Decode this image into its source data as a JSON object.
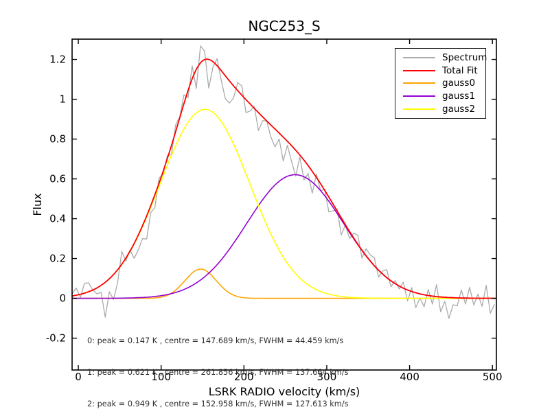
{
  "figure": {
    "title": "NGC253_S",
    "background": "#ffffff"
  },
  "legend": {
    "position": "upper right",
    "entries": [
      {
        "label": "Spectrum",
        "color": "#aaaaaa"
      },
      {
        "label": "Total Fit",
        "color": "#ff0000"
      },
      {
        "label": "gauss0",
        "color": "#ffa500"
      },
      {
        "label": "gauss1",
        "color": "#9400d3"
      },
      {
        "label": "gauss2",
        "color": "#ffff00"
      }
    ]
  },
  "annotation": {
    "lines": [
      "0: peak = 0.147 K , centre = 147.689 km/s, FWHM = 44.459 km/s",
      "1: peak = 0.621 K , centre = 261.856 km/s, FWHM = 137.664 km/s",
      "2: peak = 0.949 K , centre = 152.958 km/s, FWHM = 127.613 km/s"
    ]
  },
  "chart_data": {
    "type": "line",
    "title": "NGC253_S",
    "xlabel": "LSRK RADIO velocity (km/s)",
    "ylabel": "Flux",
    "xlim": [
      -7.5,
      504.8
    ],
    "ylim": [
      -0.36,
      1.302
    ],
    "grid": false,
    "legend_position": "upper right",
    "x_ticks": {
      "values": [
        0,
        100,
        200,
        300,
        400,
        500
      ],
      "labels": [
        "0",
        "100",
        "200",
        "300",
        "400",
        "500"
      ]
    },
    "y_ticks": {
      "values": [
        -0.2,
        0,
        0.2,
        0.4,
        0.6,
        0.8,
        1.0,
        1.2
      ],
      "labels": [
        "-0.2",
        "0",
        "0.2",
        "0.4",
        "0.6",
        "0.8",
        "1",
        "1.2"
      ]
    },
    "fit_components": [
      {
        "name": "gauss0",
        "color": "#ffa500",
        "peak_K": 0.147,
        "centre_kms": 147.689,
        "fwhm_kms": 44.459
      },
      {
        "name": "gauss1",
        "color": "#9400d3",
        "peak_K": 0.621,
        "centre_kms": 261.856,
        "fwhm_kms": 137.664
      },
      {
        "name": "gauss2",
        "color": "#ffff00",
        "peak_K": 0.949,
        "centre_kms": 152.958,
        "fwhm_kms": 127.613
      }
    ],
    "total_fit": {
      "name": "Total Fit",
      "color": "#ff0000",
      "definition": "gauss0 + gauss1 + gauss2"
    },
    "spectrum": {
      "name": "Spectrum",
      "color": "#aaaaaa",
      "x_start_kms": -7.5,
      "x_step_kms": 5,
      "flux": [
        0.022,
        0.051,
        0.005,
        0.076,
        0.078,
        0.042,
        0.022,
        0.03,
        -0.095,
        0.033,
        -0.006,
        0.078,
        0.235,
        0.188,
        0.242,
        0.201,
        0.244,
        0.3,
        0.298,
        0.43,
        0.456,
        0.604,
        0.623,
        0.717,
        0.723,
        0.871,
        0.911,
        1.022,
        1.008,
        1.168,
        1.054,
        1.268,
        1.241,
        1.056,
        1.16,
        1.204,
        1.098,
        1.003,
        0.981,
        1.007,
        1.083,
        1.066,
        0.933,
        0.941,
        0.964,
        0.843,
        0.892,
        0.891,
        0.811,
        0.761,
        0.8,
        0.69,
        0.769,
        0.687,
        0.614,
        0.71,
        0.594,
        0.627,
        0.528,
        0.623,
        0.541,
        0.548,
        0.434,
        0.439,
        0.449,
        0.319,
        0.37,
        0.301,
        0.328,
        0.317,
        0.202,
        0.249,
        0.218,
        0.204,
        0.107,
        0.137,
        0.144,
        0.058,
        0.089,
        0.047,
        0.081,
        -0.013,
        0.054,
        -0.047,
        0.002,
        -0.042,
        0.044,
        -0.029,
        0.069,
        -0.068,
        -0.015,
        -0.101,
        -0.032,
        -0.038,
        0.042,
        -0.029,
        0.056,
        -0.034,
        0.021,
        -0.04,
        0.065,
        -0.075,
        -0.03
      ]
    }
  }
}
